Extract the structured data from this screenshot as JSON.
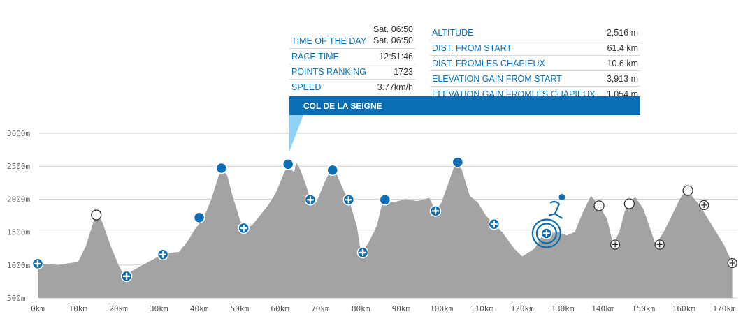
{
  "info": {
    "left": [
      {
        "label": "TIME OF THE DAY",
        "value": "Sat. 06:50",
        "value2": "Sat. 06:50"
      },
      {
        "label": "RACE TIME",
        "value": "12:51:46"
      },
      {
        "label": "POINTS RANKING",
        "value": "1723"
      },
      {
        "label": "SPEED",
        "value": "3.77km/h"
      }
    ],
    "right": [
      {
        "label": "ALTITUDE",
        "value": "2,516 m"
      },
      {
        "label": "DIST. FROM START",
        "value": "61.4 km"
      },
      {
        "label": "DIST. FROMLES CHAPIEUX",
        "value": "10.6 km"
      },
      {
        "label": "ELEVATION GAIN FROM START",
        "value": "3,913 m"
      },
      {
        "label": "ELEVATION GAIN FROMLES CHAPIEUX",
        "value": "1,054 m"
      }
    ]
  },
  "banner": {
    "title": "COL DE LA SEIGNE"
  },
  "colors": {
    "accent": "#0b6db4",
    "profile_fill": "#a3a3a3",
    "banner_tail": "#8ed3f7"
  },
  "chart_data": {
    "type": "area",
    "xlabel": "",
    "ylabel": "",
    "x_range_km": [
      0,
      172
    ],
    "y_range_m": [
      500,
      3000
    ],
    "y_ticks": [
      {
        "value": 3000,
        "label": "3000m"
      },
      {
        "value": 2500,
        "label": "2500m"
      },
      {
        "value": 2000,
        "label": "2000m"
      },
      {
        "value": 1500,
        "label": "1500m"
      },
      {
        "value": 1000,
        "label": "1000m"
      },
      {
        "value": 500,
        "label": "500m"
      }
    ],
    "x_ticks": [
      {
        "value": 0,
        "label": "0km"
      },
      {
        "value": 10,
        "label": "10km"
      },
      {
        "value": 20,
        "label": "20km"
      },
      {
        "value": 30,
        "label": "30km"
      },
      {
        "value": 40,
        "label": "40km"
      },
      {
        "value": 50,
        "label": "50km"
      },
      {
        "value": 60,
        "label": "60km"
      },
      {
        "value": 70,
        "label": "70km"
      },
      {
        "value": 80,
        "label": "80km"
      },
      {
        "value": 90,
        "label": "90km"
      },
      {
        "value": 100,
        "label": "100km"
      },
      {
        "value": 110,
        "label": "110km"
      },
      {
        "value": 120,
        "label": "120km"
      },
      {
        "value": 130,
        "label": "130km"
      },
      {
        "value": 140,
        "label": "140km"
      },
      {
        "value": 150,
        "label": "150km"
      },
      {
        "value": 160,
        "label": "160km"
      },
      {
        "value": 170,
        "label": "170km"
      }
    ],
    "grid": true,
    "profile": [
      [
        0,
        1020
      ],
      [
        3,
        1010
      ],
      [
        5,
        1000
      ],
      [
        8,
        1030
      ],
      [
        10,
        1050
      ],
      [
        12,
        1300
      ],
      [
        14,
        1700
      ],
      [
        15,
        1760
      ],
      [
        16,
        1650
      ],
      [
        18,
        1300
      ],
      [
        20,
        1000
      ],
      [
        21.5,
        830
      ],
      [
        23,
        900
      ],
      [
        26,
        1000
      ],
      [
        29,
        1100
      ],
      [
        32,
        1180
      ],
      [
        35,
        1200
      ],
      [
        37,
        1350
      ],
      [
        39,
        1550
      ],
      [
        41,
        1700
      ],
      [
        43,
        2000
      ],
      [
        44.5,
        2300
      ],
      [
        45.5,
        2470
      ],
      [
        47,
        2350
      ],
      [
        48,
        2100
      ],
      [
        50,
        1700
      ],
      [
        51,
        1560
      ],
      [
        53,
        1600
      ],
      [
        55,
        1750
      ],
      [
        57,
        1900
      ],
      [
        59,
        2100
      ],
      [
        61,
        2400
      ],
      [
        62,
        2530
      ],
      [
        63.5,
        2400
      ],
      [
        64,
        2560
      ],
      [
        65,
        2450
      ],
      [
        66.5,
        2200
      ],
      [
        67.5,
        1990
      ],
      [
        69,
        1950
      ],
      [
        71,
        2250
      ],
      [
        72.5,
        2440
      ],
      [
        74,
        2380
      ],
      [
        76,
        2100
      ],
      [
        77,
        2000
      ],
      [
        79,
        1600
      ],
      [
        80,
        1200
      ],
      [
        81,
        1250
      ],
      [
        82,
        1350
      ],
      [
        84,
        1600
      ],
      [
        85.5,
        1990
      ],
      [
        88,
        1950
      ],
      [
        91,
        2000
      ],
      [
        94,
        1970
      ],
      [
        97,
        2020
      ],
      [
        98.5,
        1820
      ],
      [
        100,
        1950
      ],
      [
        102,
        2300
      ],
      [
        103.5,
        2560
      ],
      [
        105,
        2450
      ],
      [
        107,
        2050
      ],
      [
        109,
        1950
      ],
      [
        111,
        1750
      ],
      [
        113,
        1620
      ],
      [
        115,
        1500
      ],
      [
        118,
        1250
      ],
      [
        120,
        1130
      ],
      [
        123,
        1250
      ],
      [
        125,
        1450
      ],
      [
        127,
        1480
      ],
      [
        129,
        1500
      ],
      [
        131,
        1450
      ],
      [
        133,
        1500
      ],
      [
        135,
        1800
      ],
      [
        137,
        2050
      ],
      [
        139,
        1900
      ],
      [
        141,
        1700
      ],
      [
        142.5,
        1310
      ],
      [
        144,
        1500
      ],
      [
        146,
        1950
      ],
      [
        148,
        2030
      ],
      [
        150,
        1850
      ],
      [
        153,
        1310
      ],
      [
        155,
        1500
      ],
      [
        157,
        1750
      ],
      [
        159,
        2000
      ],
      [
        160.5,
        2130
      ],
      [
        162,
        2050
      ],
      [
        164,
        1900
      ],
      [
        166,
        1700
      ],
      [
        168,
        1500
      ],
      [
        170,
        1300
      ],
      [
        172,
        1030
      ]
    ],
    "markers": [
      {
        "km": 0,
        "alt": 1020,
        "kind": "aid-station"
      },
      {
        "km": 14.5,
        "alt": 1760,
        "kind": "summit-pending"
      },
      {
        "km": 22,
        "alt": 830,
        "kind": "aid-station"
      },
      {
        "km": 31,
        "alt": 1160,
        "kind": "aid-station"
      },
      {
        "km": 40,
        "alt": 1720,
        "kind": "summit"
      },
      {
        "km": 45.5,
        "alt": 2470,
        "kind": "summit"
      },
      {
        "km": 51,
        "alt": 1560,
        "kind": "aid-station"
      },
      {
        "km": 62,
        "alt": 2530,
        "kind": "summit"
      },
      {
        "km": 67.5,
        "alt": 1990,
        "kind": "aid-station"
      },
      {
        "km": 73,
        "alt": 2440,
        "kind": "summit"
      },
      {
        "km": 77,
        "alt": 1990,
        "kind": "aid-station"
      },
      {
        "km": 80.5,
        "alt": 1190,
        "kind": "aid-station"
      },
      {
        "km": 86,
        "alt": 1990,
        "kind": "summit"
      },
      {
        "km": 98.5,
        "alt": 1820,
        "kind": "aid-station"
      },
      {
        "km": 104,
        "alt": 2560,
        "kind": "summit"
      },
      {
        "km": 113,
        "alt": 1620,
        "kind": "aid-station"
      },
      {
        "km": 126,
        "alt": 1480,
        "kind": "runner-position"
      },
      {
        "km": 139,
        "alt": 1900,
        "kind": "summit-pending"
      },
      {
        "km": 143,
        "alt": 1310,
        "kind": "aid-station-pending"
      },
      {
        "km": 146.5,
        "alt": 1930,
        "kind": "summit-pending"
      },
      {
        "km": 154,
        "alt": 1310,
        "kind": "aid-station-pending"
      },
      {
        "km": 161,
        "alt": 2130,
        "kind": "summit-pending"
      },
      {
        "km": 165,
        "alt": 1910,
        "kind": "aid-station-pending"
      },
      {
        "km": 172,
        "alt": 1030,
        "kind": "aid-station-pending"
      }
    ]
  }
}
